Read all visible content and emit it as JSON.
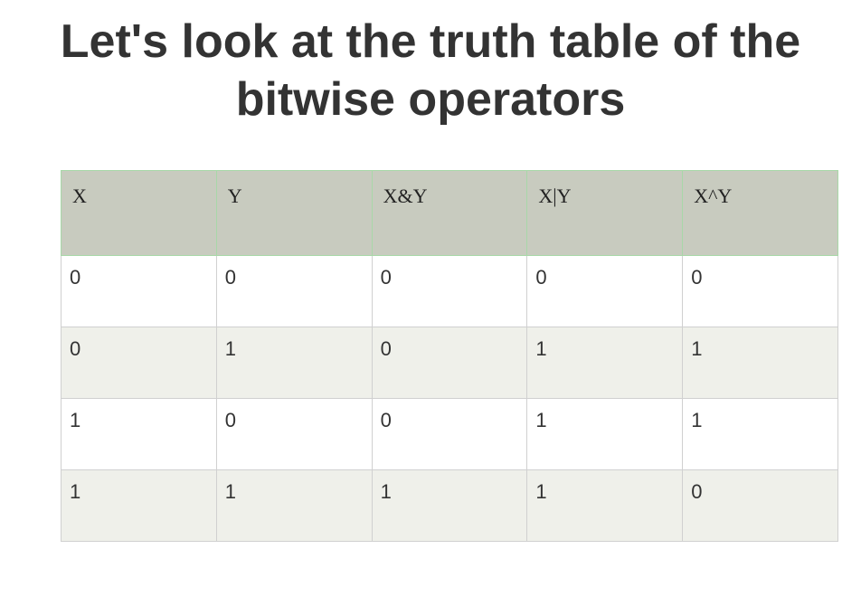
{
  "slide": {
    "title_line1": "Let's look at the truth table of the",
    "title_line2": "bitwise operators"
  },
  "table": {
    "headers": [
      "X",
      "Y",
      "X&Y",
      "X|Y",
      "X^Y"
    ],
    "rows": [
      [
        "0",
        "0",
        "0",
        "0",
        "0"
      ],
      [
        "0",
        "1",
        "0",
        "1",
        "1"
      ],
      [
        "1",
        "0",
        "0",
        "1",
        "1"
      ],
      [
        "1",
        "1",
        "1",
        "1",
        "0"
      ]
    ]
  },
  "colors": {
    "header_bg": "#c8cbbf",
    "stripe_bg": "#eff0ea",
    "title_text": "#333333"
  }
}
